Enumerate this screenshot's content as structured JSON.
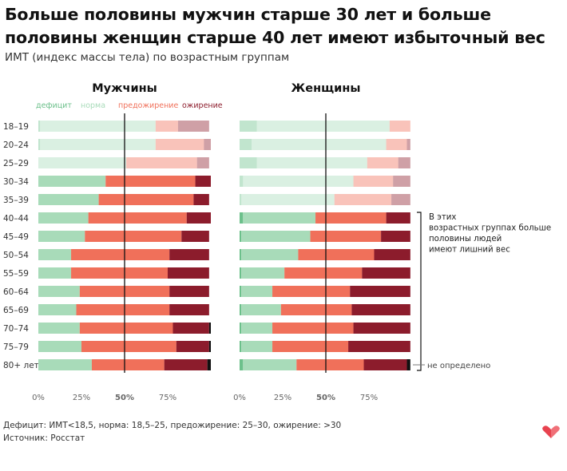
{
  "title": "Больше половины мужчин старше 30 лет и больше половины женщин старше 40 лет имеют избыточный вес",
  "subtitle": "ИМТ (индекс массы тела) по возрастным группам",
  "footer": {
    "definition": "Дефицит: ИМТ<18,5, норма: 18,5–25, предожирение: 25–30, ожирение: >30",
    "source": "Источник: Росстат"
  },
  "legend": [
    {
      "name": "дефицит",
      "color": "#6cc08b"
    },
    {
      "name": "норма",
      "color": "#a8dbb9"
    },
    {
      "name": "предожирение",
      "color": "#f0705a"
    },
    {
      "name": "ожирение",
      "color": "#8c1c2c"
    }
  ],
  "annotations": {
    "bracket": "В этих возрастных группах больше половины людей имеют лишний вес",
    "undetermined": "не определено"
  },
  "chart_data": {
    "type": "bar",
    "stacked": true,
    "orientation": "horizontal",
    "categories": [
      "18–19",
      "20–24",
      "25–29",
      "30–34",
      "35–39",
      "40–44",
      "45–49",
      "50–54",
      "55–59",
      "60–64",
      "65–69",
      "70–74",
      "75–79",
      "80+ лет"
    ],
    "x_ticks": [
      "0%",
      "25%",
      "50%",
      "75%"
    ],
    "xlim": [
      0,
      100
    ],
    "colors": {
      "deficit": "#6cc08b",
      "normal": "#a8dbb9",
      "pre": "#f0705a",
      "obese": "#8c1c2c",
      "undetermined": "#111111"
    },
    "highlight_from_index": {
      "men": 3,
      "women": 5
    },
    "panels": [
      {
        "name": "Мужчины",
        "deficit": [
          1,
          1,
          0,
          0,
          0,
          0,
          0,
          0,
          0,
          0,
          0,
          0,
          0,
          0
        ],
        "normal": [
          67,
          67,
          51,
          39,
          35,
          29,
          27,
          19,
          19,
          24,
          22,
          24,
          25,
          31
        ],
        "pre": [
          13,
          28,
          41,
          52,
          55,
          57,
          56,
          57,
          56,
          52,
          54,
          54,
          55,
          42
        ],
        "obese": [
          18,
          4,
          7,
          9,
          9,
          14,
          16,
          23,
          24,
          23,
          23,
          21,
          19,
          25
        ],
        "undetermined": [
          0,
          0,
          0,
          0,
          0,
          0,
          0,
          0,
          0,
          0,
          0,
          1,
          1,
          2
        ]
      },
      {
        "name": "Женщины",
        "deficit": [
          10,
          7,
          10,
          2,
          1,
          2,
          1,
          1,
          1,
          1,
          1,
          1,
          1,
          2
        ],
        "normal": [
          77,
          78,
          64,
          64,
          54,
          42,
          40,
          33,
          25,
          18,
          23,
          18,
          18,
          31
        ],
        "pre": [
          12,
          12,
          18,
          23,
          33,
          41,
          41,
          44,
          45,
          45,
          41,
          47,
          44,
          39
        ],
        "obese": [
          0,
          2,
          7,
          10,
          11,
          14,
          17,
          21,
          28,
          35,
          34,
          33,
          36,
          25
        ],
        "undetermined": [
          0,
          0,
          0,
          0,
          0,
          0,
          0,
          0,
          0,
          0,
          0,
          0,
          0,
          2
        ]
      }
    ]
  }
}
